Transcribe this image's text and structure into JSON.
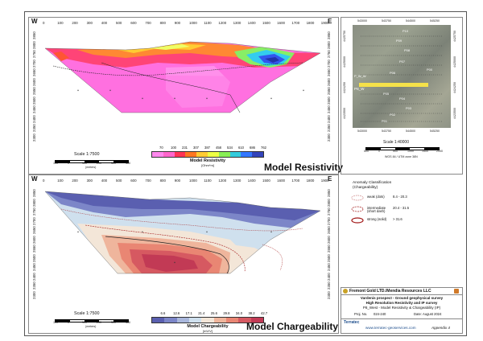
{
  "resistivity": {
    "title": "Model Resistivity",
    "west": "W",
    "east": "E",
    "x_ticks": [
      "0",
      "100",
      "200",
      "300",
      "400",
      "500",
      "600",
      "700",
      "800",
      "900",
      "1000",
      "1100",
      "1200",
      "1300",
      "1400",
      "1500",
      "1600",
      "1700",
      "1800",
      "1900"
    ],
    "elev_ticks": [
      "2850",
      "2800",
      "2750",
      "2700",
      "2650",
      "2600",
      "2550",
      "2500",
      "2450",
      "2400",
      "2350",
      "2300"
    ],
    "scale_label": "Scale 1:7500",
    "scale_ticks": [
      "100",
      "0",
      "100",
      "200",
      "300",
      "400"
    ],
    "scale_unit": "(meters)",
    "legend_values": [
      "70",
      "100",
      "231",
      "307",
      "387",
      "458",
      "534",
      "610",
      "686",
      "762"
    ],
    "legend_title": "Model Resistivity",
    "legend_unit": "[Ohm*m]",
    "colors": [
      "#ff88ee",
      "#ff66cc",
      "#ff3355",
      "#ff7722",
      "#ffcc33",
      "#eeff44",
      "#88ee55",
      "#33ccdd",
      "#3377ff",
      "#3344bb"
    ]
  },
  "chargeability": {
    "title": "Model Chargeability",
    "west": "W",
    "east": "E",
    "x_ticks": [
      "0",
      "100",
      "200",
      "300",
      "400",
      "500",
      "600",
      "700",
      "800",
      "900",
      "1000",
      "1100",
      "1200",
      "1300",
      "1400",
      "1500",
      "1600",
      "1700",
      "1800",
      "1900"
    ],
    "elev_ticks": [
      "2850",
      "2800",
      "2750",
      "2700",
      "2650",
      "2600",
      "2550",
      "2500",
      "2450",
      "2400",
      "2350",
      "2300"
    ],
    "scale_label": "Scale 1:7500",
    "scale_ticks": [
      "100",
      "0",
      "100",
      "200",
      "300",
      "400"
    ],
    "scale_unit": "(meters)",
    "legend_values": [
      "6.6",
      "12.6",
      "17.1",
      "21.4",
      "25.6",
      "29.8",
      "34.0",
      "38.2",
      "42.7"
    ],
    "legend_title": "Model Chargeability",
    "legend_unit": "[mV/V]",
    "colors": [
      "#5a5fb0",
      "#7c86c8",
      "#a9b7dc",
      "#cfe0ee",
      "#f3e6d8",
      "#efb59c",
      "#e98673",
      "#d65961",
      "#c23a55"
    ]
  },
  "map": {
    "top_coords": [
      "543000",
      "543750",
      "544500",
      "545250"
    ],
    "bottom_coords": [
      "543000",
      "543750",
      "544500",
      "545250"
    ],
    "left_coords": [
      "4425750",
      "4425000",
      "4424250",
      "4423500"
    ],
    "right_coords": [
      "4425750",
      "4425000",
      "4424250",
      "4423500"
    ],
    "stations": [
      "P10",
      "P09",
      "P08",
      "P07",
      "P00",
      "P06",
      "P_W_W",
      "P05",
      "P04",
      "P03",
      "P02",
      "P01"
    ],
    "highlight_label": "P8_W",
    "scale_label": "Scale 1:40000",
    "scale_ticks": [
      "500",
      "0",
      "500",
      "1000",
      "1500",
      "2000"
    ],
    "datum": "WGS 84 / UTM zone 38N",
    "highlight_color": "#f5e14a"
  },
  "anomaly": {
    "title": "Anomaly Classification",
    "subtitle": "(Chargeability)",
    "items": [
      {
        "label": "weak (dots)",
        "range": "8.4 - 20.3",
        "style": "dotted"
      },
      {
        "label": "intermediate (short dash)",
        "range": "20.4 - 31.5",
        "style": "dashed"
      },
      {
        "label": "strong (solid)",
        "range": "> 31.6",
        "style": "solid"
      }
    ],
    "color": "#a31b1b"
  },
  "title_block": {
    "company": "Fremont Gold LTD./Mendia Resources LLC",
    "project": "Vardenis prospect - Ground geophysical survey",
    "survey": "High Resolution Resistivity and IP survey",
    "line": "P8_West - Model Resistivity & Chargeability (IP)",
    "fig_label": "Proj. No.",
    "fig_no": "024-240",
    "date": "Date: August 2024",
    "logo": "Terratec",
    "website": "www.terratec-geoservices.com",
    "appendix": "Appendix 4"
  }
}
